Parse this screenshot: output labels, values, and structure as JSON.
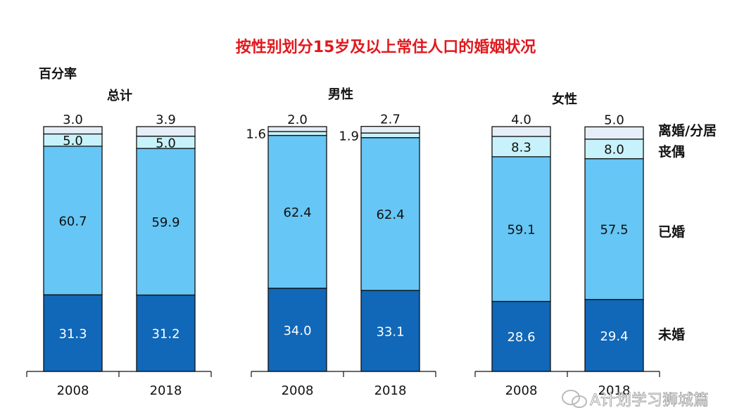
{
  "colors": {
    "background": "#ffffff",
    "title": "#e0191e",
    "never_married": "#1167b8",
    "married": "#66c6f5",
    "widowed": "#c8f2fb",
    "divorced": "#e6eef7",
    "outline": "#111111"
  },
  "watermark": "A计划学习狮城篇",
  "chart_data": {
    "type": "bar",
    "stacked": true,
    "percent": true,
    "title": "按性别划分15岁及以上常住人口的婚姻状况",
    "ylabel": "百分率",
    "ylim": [
      0,
      100
    ],
    "grid": false,
    "legend_placement": "right",
    "legend": [
      "离婚/分居",
      "丧偶",
      "已婚",
      "未婚"
    ],
    "panels": [
      {
        "name": "总计",
        "categories": [
          "2008",
          "2018"
        ],
        "series": [
          {
            "name": "未婚",
            "key": "never_married",
            "values": [
              31.3,
              31.2
            ]
          },
          {
            "name": "已婚",
            "key": "married",
            "values": [
              60.7,
              59.9
            ]
          },
          {
            "name": "丧偶",
            "key": "widowed",
            "values": [
              5.0,
              5.0
            ]
          },
          {
            "name": "离婚/分居",
            "key": "divorced",
            "values": [
              3.0,
              3.9
            ]
          }
        ]
      },
      {
        "name": "男性",
        "categories": [
          "2008",
          "2018"
        ],
        "series": [
          {
            "name": "未婚",
            "key": "never_married",
            "values": [
              34.0,
              33.1
            ]
          },
          {
            "name": "已婚",
            "key": "married",
            "values": [
              62.4,
              62.4
            ]
          },
          {
            "name": "丧偶",
            "key": "widowed",
            "values": [
              1.6,
              1.9
            ]
          },
          {
            "name": "离婚/分居",
            "key": "divorced",
            "values": [
              2.0,
              2.7
            ]
          }
        ]
      },
      {
        "name": "女性",
        "categories": [
          "2008",
          "2018"
        ],
        "series": [
          {
            "name": "未婚",
            "key": "never_married",
            "values": [
              28.6,
              29.4
            ]
          },
          {
            "name": "已婚",
            "key": "married",
            "values": [
              59.1,
              57.5
            ]
          },
          {
            "name": "丧偶",
            "key": "widowed",
            "values": [
              8.3,
              8.0
            ]
          },
          {
            "name": "离婚/分居",
            "key": "divorced",
            "values": [
              4.0,
              5.0
            ]
          }
        ]
      }
    ]
  }
}
